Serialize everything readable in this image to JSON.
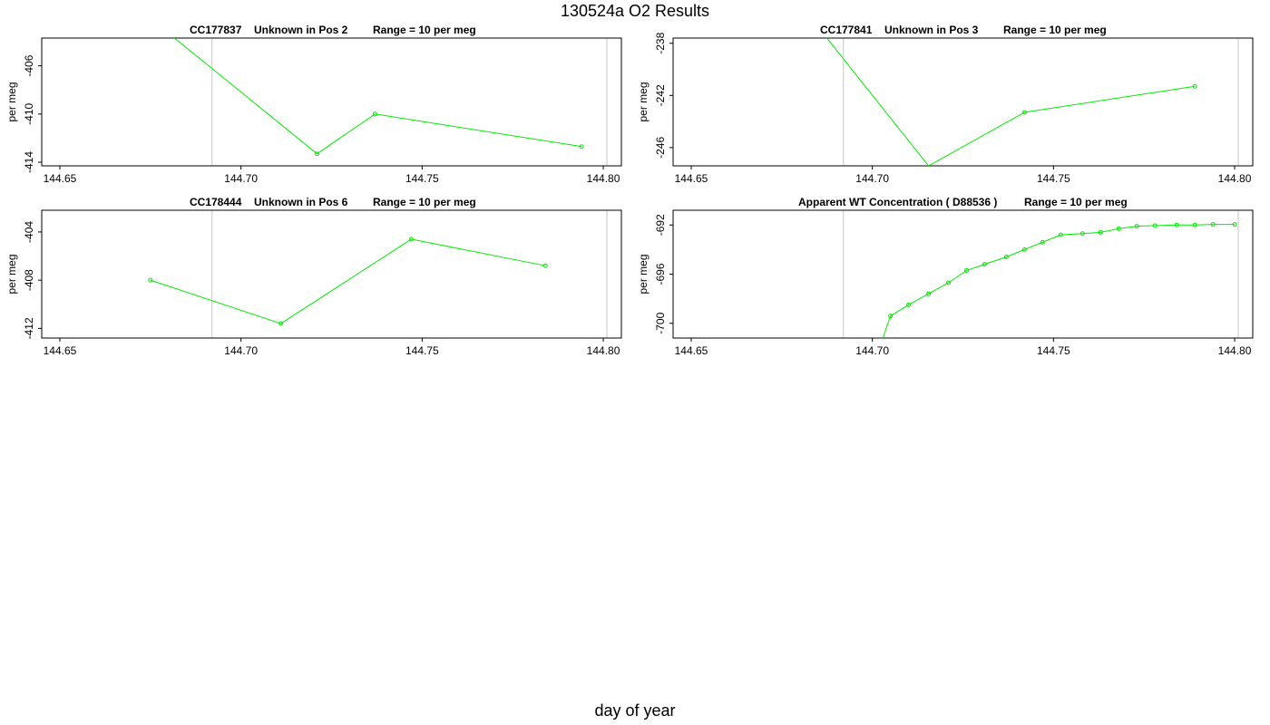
{
  "title": "130524a  O2 Results",
  "xlabel": "day of year",
  "colors": {
    "series": "#00ee00",
    "frame": "#000000",
    "vline": "#c8c8c8"
  },
  "chart_data": [
    {
      "type": "line",
      "title_parts": [
        "CC177837",
        "Unknown in Pos 2",
        "Range = 10 per meg"
      ],
      "ylabel": "per meg",
      "xlim": [
        144.645,
        144.805
      ],
      "ylim": [
        -414.3,
        -403.7
      ],
      "xticks": [
        144.65,
        144.7,
        144.75,
        144.8
      ],
      "xtick_labels": [
        "144.65",
        "144.70",
        "144.75",
        "144.80"
      ],
      "yticks": [
        -406,
        -410,
        -414
      ],
      "ytick_labels": [
        "-406",
        "-410",
        "-414"
      ],
      "vlines": [
        144.692,
        144.801
      ],
      "x": [
        144.68,
        144.721,
        144.737,
        144.794
      ],
      "y": [
        -403.3,
        -413.3,
        -410.0,
        -412.7
      ],
      "markers": [
        false,
        true,
        true,
        true
      ]
    },
    {
      "type": "line",
      "title_parts": [
        "CC177841",
        "Unknown in Pos 3",
        "Range = 10 per meg"
      ],
      "ylabel": "per meg",
      "xlim": [
        144.645,
        144.805
      ],
      "ylim": [
        -247.4,
        -237.6
      ],
      "xticks": [
        144.65,
        144.7,
        144.75,
        144.8
      ],
      "xtick_labels": [
        "144.65",
        "144.70",
        "144.75",
        "144.80"
      ],
      "yticks": [
        -238,
        -242,
        -246
      ],
      "ytick_labels": [
        "-238",
        "-242",
        "-246"
      ],
      "vlines": [
        144.692,
        144.801
      ],
      "x": [
        144.68,
        144.7155,
        144.742,
        144.789
      ],
      "y": [
        -235.0,
        -247.4,
        -243.3,
        -241.3
      ],
      "markers": [
        false,
        false,
        true,
        true
      ]
    },
    {
      "type": "line",
      "title_parts": [
        "CC178444",
        "Unknown in Pos 6",
        "Range = 10 per meg"
      ],
      "ylabel": "per meg",
      "xlim": [
        144.645,
        144.805
      ],
      "ylim": [
        -412.8,
        -402.2
      ],
      "xticks": [
        144.65,
        144.7,
        144.75,
        144.8
      ],
      "xtick_labels": [
        "144.65",
        "144.70",
        "144.75",
        "144.80"
      ],
      "yticks": [
        -404,
        -408,
        -412
      ],
      "ytick_labels": [
        "-404",
        "-408",
        "-412"
      ],
      "vlines": [
        144.692,
        144.801
      ],
      "x": [
        144.675,
        144.711,
        144.747,
        144.784
      ],
      "y": [
        -408.0,
        -411.6,
        -404.6,
        -406.8
      ],
      "markers": [
        true,
        true,
        true,
        true
      ]
    },
    {
      "type": "line",
      "title_parts": [
        "Apparent WT Concentration ( D88536 )",
        "Range = 10 per meg"
      ],
      "ylabel": "per meg",
      "xlim": [
        144.645,
        144.805
      ],
      "ylim": [
        -701.2,
        -690.8
      ],
      "xticks": [
        144.65,
        144.7,
        144.75,
        144.8
      ],
      "xtick_labels": [
        "144.65",
        "144.70",
        "144.75",
        "144.80"
      ],
      "yticks": [
        -692,
        -696,
        -700
      ],
      "ytick_labels": [
        "-692",
        "-696",
        "-700"
      ],
      "vlines": [
        144.692,
        144.801
      ],
      "x": [
        144.702,
        144.705,
        144.71,
        144.7155,
        144.721,
        144.726,
        144.731,
        144.737,
        144.742,
        144.747,
        144.752,
        144.758,
        144.763,
        144.768,
        144.773,
        144.778,
        144.784,
        144.789,
        144.794,
        144.8
      ],
      "y": [
        -702.0,
        -699.4,
        -698.5,
        -697.6,
        -696.7,
        -695.7,
        -695.2,
        -694.6,
        -694.0,
        -693.4,
        -692.8,
        -692.7,
        -692.6,
        -692.3,
        -692.1,
        -692.05,
        -692.0,
        -692.0,
        -691.95,
        -691.95
      ],
      "markers": [
        false,
        true,
        true,
        true,
        true,
        true,
        true,
        true,
        true,
        true,
        true,
        true,
        true,
        true,
        true,
        true,
        true,
        true,
        true,
        true
      ]
    }
  ]
}
